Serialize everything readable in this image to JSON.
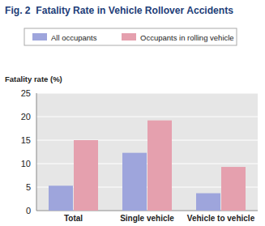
{
  "chart_data": {
    "type": "bar",
    "title": "Fig. 2  Fatality Rate in Vehicle Rollover Accidents",
    "y_label": "Fatality rate (%)",
    "categories": [
      "Total",
      "Single vehicle",
      "Vehicle to vehicle"
    ],
    "series": [
      {
        "name": "All occupants",
        "color": "#9ea5dc",
        "values": [
          5.3,
          12.3,
          3.7
        ]
      },
      {
        "name": "Occupants in rolling vehicle",
        "color": "#e5a0ae",
        "values": [
          15.0,
          19.2,
          9.3
        ]
      }
    ],
    "ylim": [
      0,
      25
    ],
    "yticks": [
      0,
      5,
      10,
      15,
      20,
      25
    ],
    "grid": true,
    "legend": "top"
  }
}
